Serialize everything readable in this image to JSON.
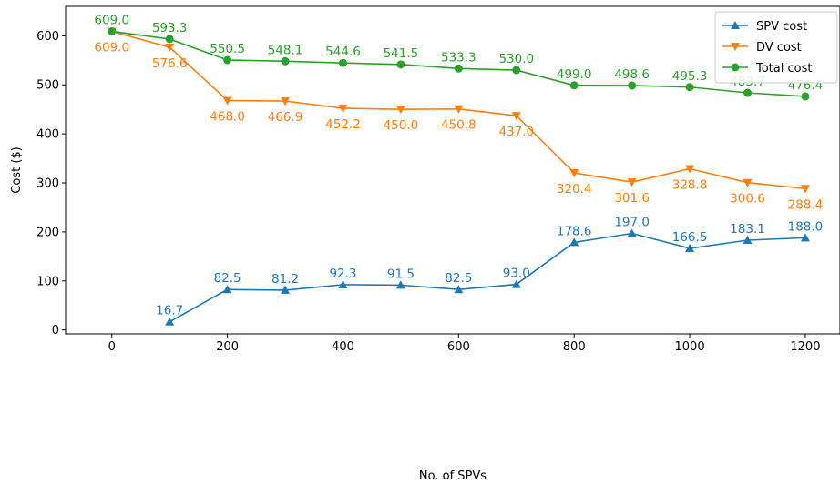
{
  "chart_data": {
    "type": "line",
    "title": "",
    "xlabel": "No. of SPVs",
    "ylabel": "Cost ($)",
    "xlim": [
      -80,
      1260
    ],
    "ylim": [
      -8,
      660
    ],
    "xticks": [
      0,
      200,
      400,
      600,
      800,
      1000,
      1200
    ],
    "yticks": [
      0,
      100,
      200,
      300,
      400,
      500,
      600
    ],
    "grid": false,
    "legend_position": "top-right",
    "series": [
      {
        "name": "SPV cost",
        "color": "#1f77b4",
        "marker": "triangle-up",
        "x": [
          100,
          200,
          300,
          400,
          500,
          600,
          700,
          800,
          900,
          1000,
          1100,
          1200
        ],
        "values": [
          16.7,
          82.5,
          81.2,
          92.3,
          91.5,
          82.5,
          93.0,
          178.6,
          197.0,
          166.5,
          183.1,
          188.0
        ],
        "labels": [
          "16.7",
          "82.5",
          "81.2",
          "92.3",
          "91.5",
          "82.5",
          "93.0",
          "178.6",
          "197.0",
          "166.5",
          "183.1",
          "188.0"
        ]
      },
      {
        "name": "DV cost",
        "color": "#ff7f0e",
        "marker": "triangle-down",
        "x": [
          0,
          100,
          200,
          300,
          400,
          500,
          600,
          700,
          800,
          900,
          1000,
          1100,
          1200
        ],
        "values": [
          609.0,
          576.6,
          468.0,
          466.9,
          452.2,
          450.0,
          450.8,
          437.0,
          320.4,
          301.6,
          328.8,
          300.6,
          288.4
        ],
        "labels": [
          "609.0",
          "576.6",
          "468.0",
          "466.9",
          "452.2",
          "450.0",
          "450.8",
          "437.0",
          "320.4",
          "301.6",
          "328.8",
          "300.6",
          "288.4"
        ]
      },
      {
        "name": "Total cost",
        "color": "#2ca02c",
        "marker": "circle",
        "x": [
          0,
          100,
          200,
          300,
          400,
          500,
          600,
          700,
          800,
          900,
          1000,
          1100,
          1200
        ],
        "values": [
          609.0,
          593.3,
          550.5,
          548.1,
          544.6,
          541.5,
          533.3,
          530.0,
          499.0,
          498.6,
          495.3,
          483.7,
          476.4
        ],
        "labels": [
          "609.0",
          "593.3",
          "550.5",
          "548.1",
          "544.6",
          "541.5",
          "533.3",
          "530.0",
          "499.0",
          "498.6",
          "495.3",
          "483.7",
          "476.4"
        ]
      }
    ]
  }
}
